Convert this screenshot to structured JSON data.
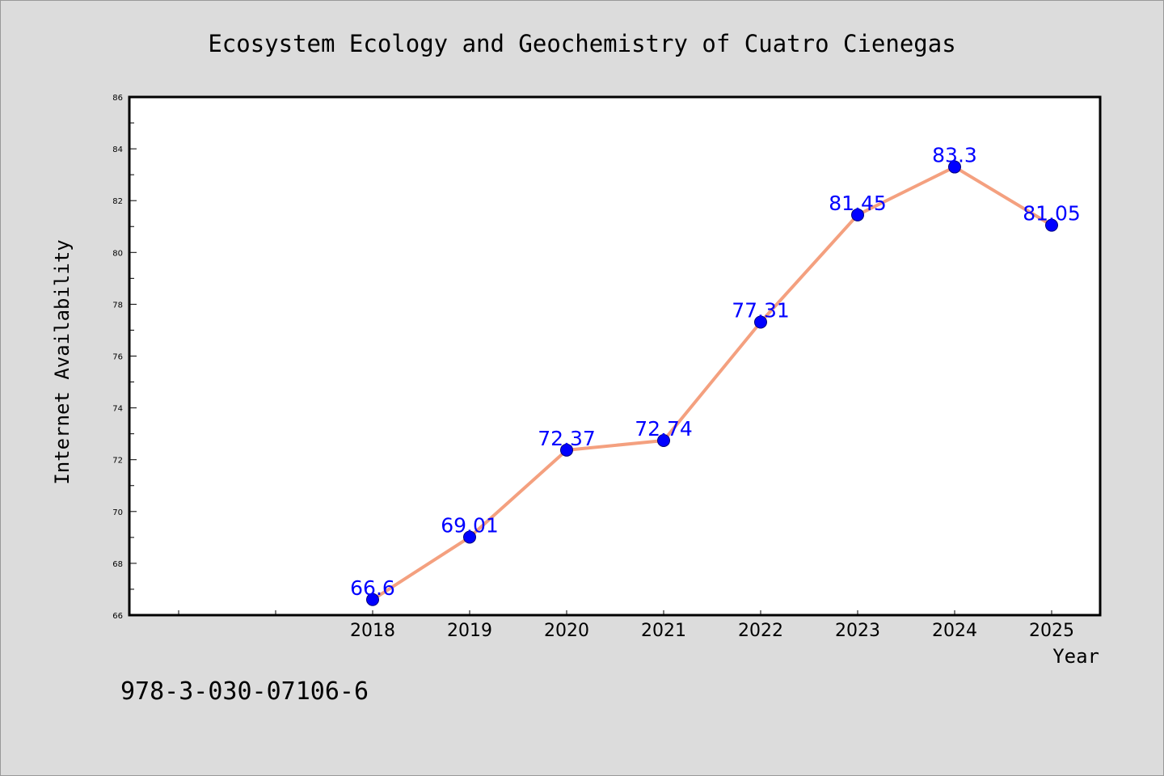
{
  "chart_data": {
    "type": "line",
    "title": "Ecosystem Ecology and Geochemistry of Cuatro Cienegas",
    "xlabel": "Year",
    "ylabel": "Internet Availability",
    "categories": [
      "2018",
      "2019",
      "2020",
      "2021",
      "2022",
      "2023",
      "2024",
      "2025"
    ],
    "series": [
      {
        "values": [
          66.6,
          69.01,
          72.37,
          72.74,
          77.31,
          81.45,
          83.3,
          81.05
        ],
        "labels": [
          "66.6",
          "69.01",
          "72.37",
          "72.74",
          "77.31",
          "81.45",
          "83.3",
          "81.05"
        ]
      }
    ],
    "ylim": [
      66,
      86
    ],
    "yticks": [
      "66",
      "68",
      "70",
      "72",
      "74",
      "76",
      "78",
      "80",
      "82",
      "84",
      "86"
    ],
    "grid": false,
    "legend": "none",
    "colors": {
      "line": "#f4a07f",
      "marker": "#0000ff",
      "marker_edge": "#00007a",
      "data_label": "#0000ff",
      "plot_background": "#ffffff",
      "figure_background": "#dcdcdc"
    }
  },
  "footnote": "978-3-030-07106-6"
}
